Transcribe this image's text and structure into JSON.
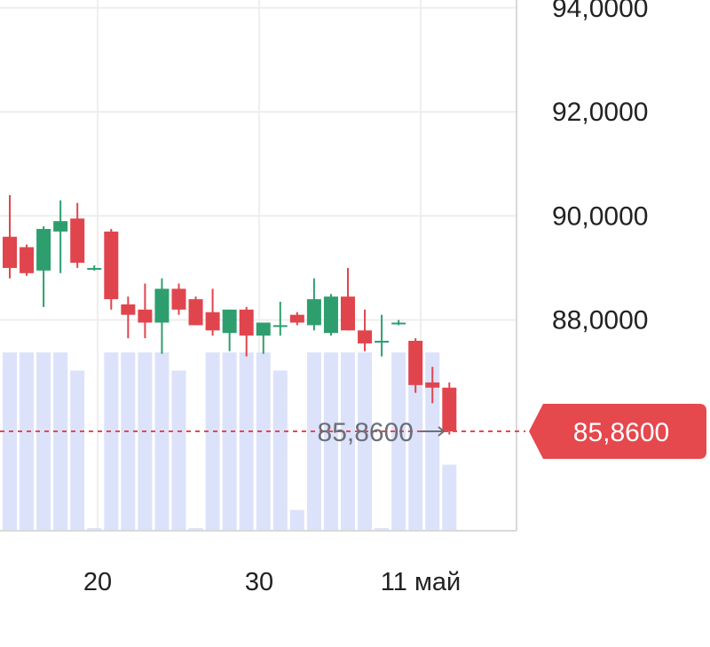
{
  "chart_data": {
    "type": "candlestick",
    "y_ticks": [
      "94,0000",
      "92,0000",
      "90,0000",
      "88,0000"
    ],
    "ylim": [
      83.95,
      94.15
    ],
    "x_ticks": [
      "20",
      "30",
      "11 май"
    ],
    "last_price": {
      "value": 85.86,
      "label": "85,8600",
      "badge": "85,8600",
      "color": "#e5484d"
    },
    "colors": {
      "up": "#2e9e6f",
      "down": "#e0454d",
      "volume": "#dde2fb",
      "grid": "#eeeeee",
      "axis": "#d9d9d9"
    },
    "volume_scale_max": 1.0,
    "candles": [
      {
        "open": 89.6,
        "high": 90.4,
        "low": 88.8,
        "close": 89.0
      },
      {
        "open": 89.4,
        "high": 89.45,
        "low": 88.85,
        "close": 88.9
      },
      {
        "open": 88.95,
        "high": 89.8,
        "low": 88.25,
        "close": 89.75
      },
      {
        "open": 89.7,
        "high": 90.3,
        "low": 88.9,
        "close": 89.9
      },
      {
        "open": 89.95,
        "high": 90.25,
        "low": 89.0,
        "close": 89.1
      },
      {
        "open": 89.0,
        "high": 89.05,
        "low": 88.95,
        "close": 89.0
      },
      {
        "open": 89.7,
        "high": 89.75,
        "low": 88.2,
        "close": 88.4
      },
      {
        "open": 88.3,
        "high": 88.45,
        "low": 87.65,
        "close": 88.1
      },
      {
        "open": 88.2,
        "high": 88.7,
        "low": 87.65,
        "close": 87.95
      },
      {
        "open": 87.95,
        "high": 88.8,
        "low": 87.35,
        "close": 88.6
      },
      {
        "open": 88.6,
        "high": 88.7,
        "low": 88.1,
        "close": 88.2
      },
      {
        "open": 88.4,
        "high": 88.45,
        "low": 87.9,
        "close": 87.9
      },
      {
        "open": 88.15,
        "high": 88.6,
        "low": 87.7,
        "close": 87.8
      },
      {
        "open": 87.75,
        "high": 88.2,
        "low": 87.4,
        "close": 88.2
      },
      {
        "open": 88.2,
        "high": 88.25,
        "low": 87.3,
        "close": 87.7
      },
      {
        "open": 87.7,
        "high": 87.95,
        "low": 87.35,
        "close": 87.95
      },
      {
        "open": 87.9,
        "high": 88.35,
        "low": 87.7,
        "close": 87.9
      },
      {
        "open": 88.1,
        "high": 88.15,
        "low": 87.9,
        "close": 87.95
      },
      {
        "open": 87.9,
        "high": 88.8,
        "low": 87.8,
        "close": 88.4
      },
      {
        "open": 87.75,
        "high": 88.5,
        "low": 87.7,
        "close": 88.45
      },
      {
        "open": 88.45,
        "high": 89.0,
        "low": 87.8,
        "close": 87.8
      },
      {
        "open": 87.8,
        "high": 88.2,
        "low": 87.4,
        "close": 87.55
      },
      {
        "open": 87.6,
        "high": 88.1,
        "low": 87.3,
        "close": 87.6
      },
      {
        "open": 87.95,
        "high": 88.0,
        "low": 87.9,
        "close": 87.95
      },
      {
        "open": 87.6,
        "high": 87.65,
        "low": 86.6,
        "close": 86.75
      },
      {
        "open": 86.8,
        "high": 87.1,
        "low": 86.4,
        "close": 86.7
      },
      {
        "open": 86.7,
        "high": 86.8,
        "low": 85.8,
        "close": 85.86
      }
    ],
    "volumes": [
      0.98,
      0.98,
      0.98,
      0.98,
      0.88,
      0.01,
      0.98,
      0.98,
      0.98,
      0.98,
      0.88,
      0.01,
      0.98,
      0.98,
      0.98,
      0.98,
      0.88,
      0.11,
      0.98,
      0.98,
      0.98,
      0.98,
      0.01,
      0.98,
      0.98,
      0.98,
      0.36
    ]
  }
}
